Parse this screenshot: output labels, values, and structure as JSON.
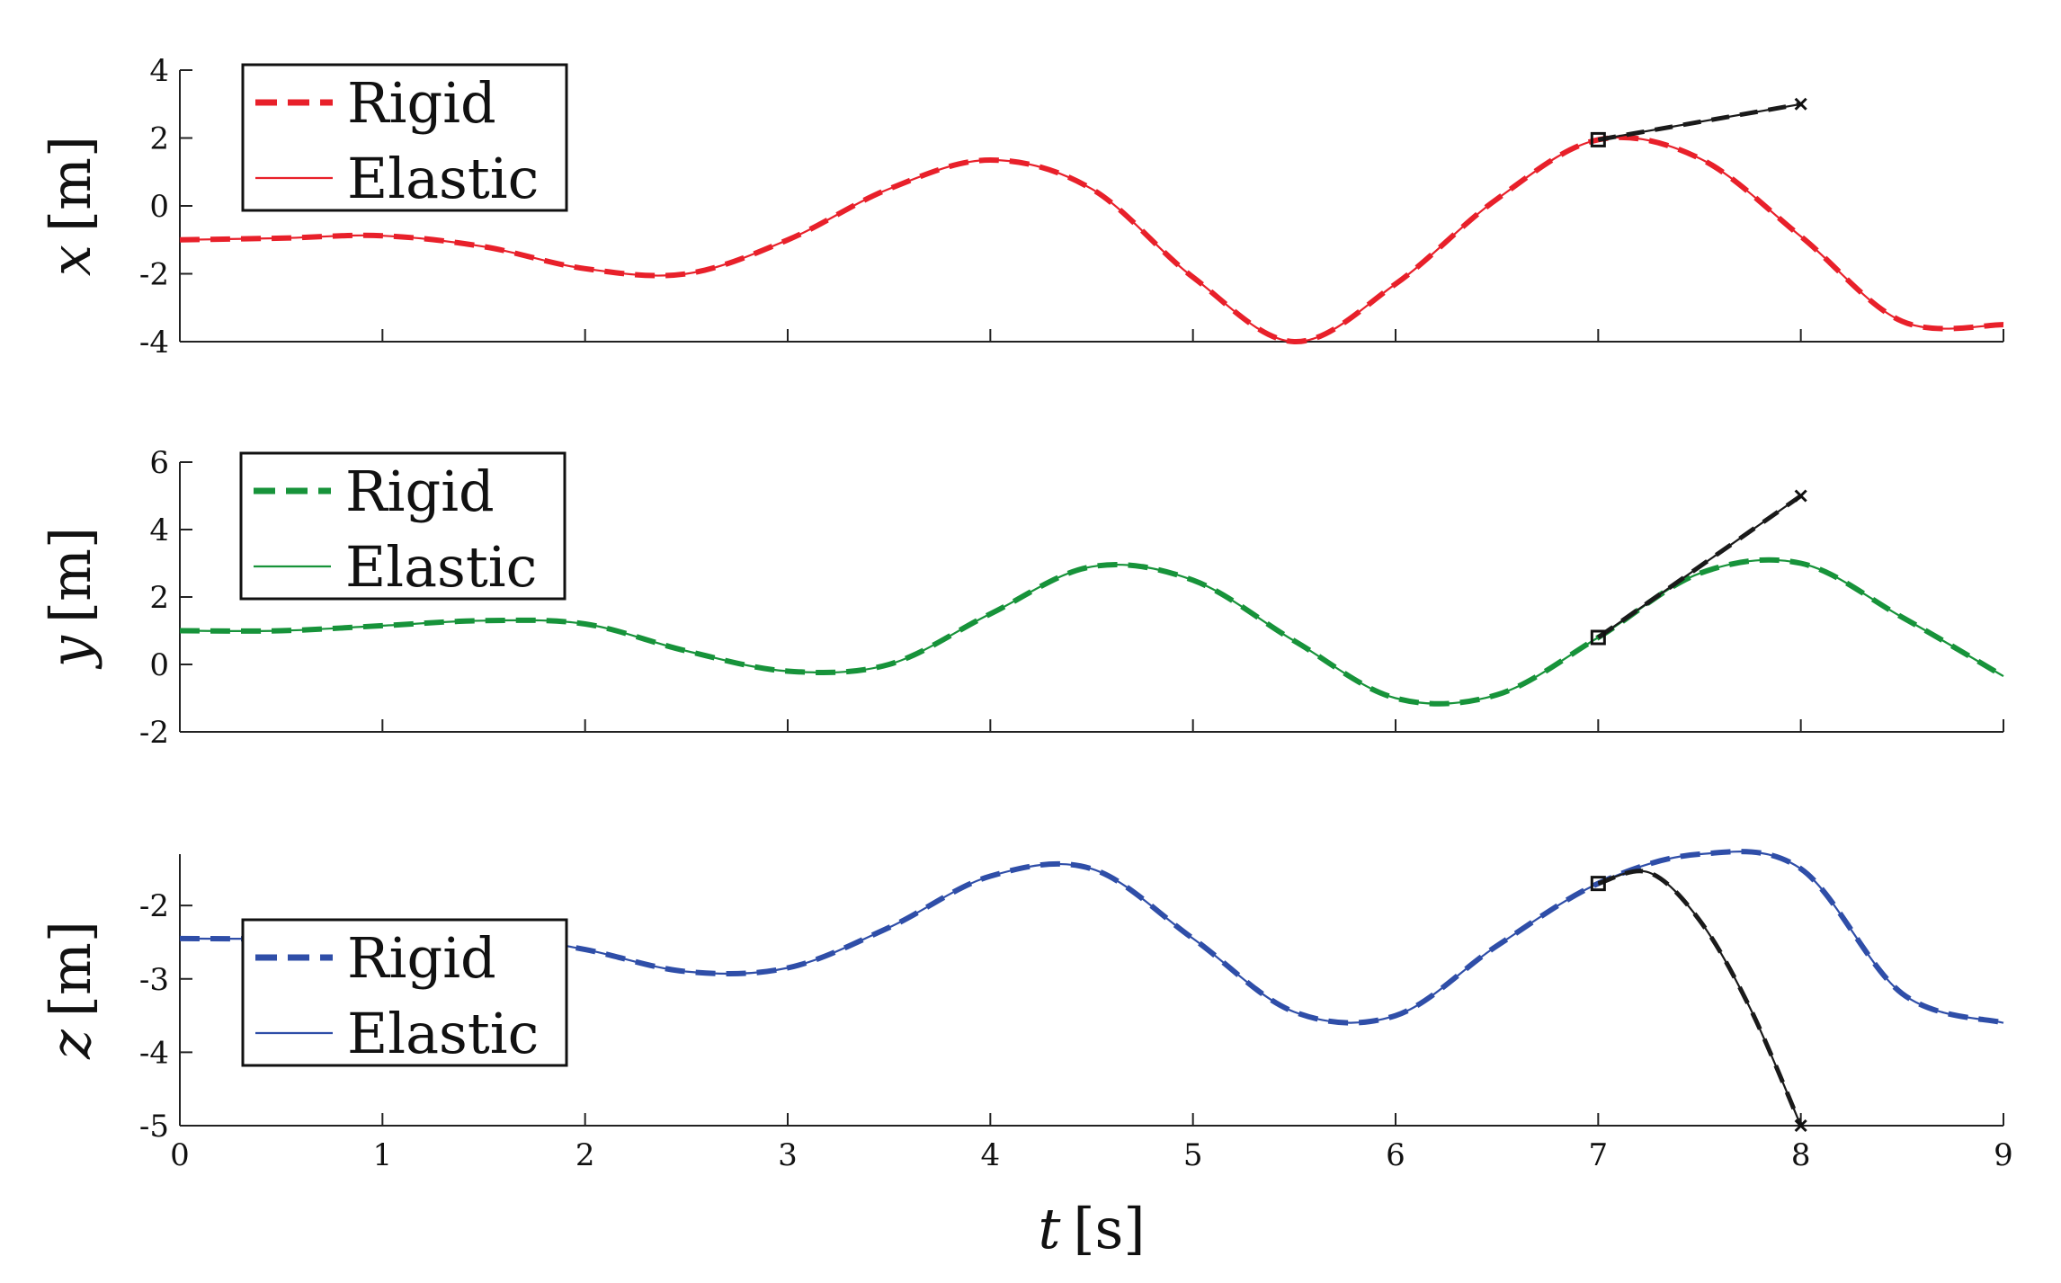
{
  "colors": {
    "x": "#e8202a",
    "y": "#17933a",
    "z": "#2f4ea8",
    "prediction": "#1a1a1a"
  },
  "chart_data": [
    {
      "type": "line",
      "ylabel_var": "x",
      "ylabel_unit": "[m]",
      "xlim": [
        0,
        9
      ],
      "ylim": [
        -4,
        4
      ],
      "yticks": [
        -4,
        -2,
        0,
        2,
        4
      ],
      "legend_position": "top-left",
      "series": [
        {
          "name": "Rigid",
          "style": "dashed",
          "color": "#e8202a",
          "x": [
            0,
            0.5,
            1,
            1.5,
            2,
            2.5,
            3,
            3.5,
            4,
            4.5,
            5,
            5.5,
            6,
            6.5,
            7,
            7.5,
            8,
            8.5,
            9
          ],
          "y": [
            -1.0,
            -0.95,
            -0.88,
            -1.2,
            -1.85,
            -2.0,
            -1.0,
            0.5,
            1.35,
            0.5,
            -2.1,
            -4.0,
            -2.3,
            0.2,
            1.95,
            1.4,
            -0.9,
            -3.4,
            -3.5
          ]
        },
        {
          "name": "Elastic",
          "style": "solid",
          "color": "#e8202a",
          "x": [
            0,
            0.5,
            1,
            1.5,
            2,
            2.5,
            3,
            3.5,
            4,
            4.5,
            5,
            5.5,
            6,
            6.5,
            7,
            7.5,
            8,
            8.5,
            9
          ],
          "y": [
            -1.0,
            -0.95,
            -0.88,
            -1.2,
            -1.85,
            -2.0,
            -1.0,
            0.5,
            1.35,
            0.5,
            -2.1,
            -4.0,
            -2.3,
            0.2,
            1.95,
            1.4,
            -0.9,
            -3.4,
            -3.5
          ]
        }
      ],
      "prediction": {
        "x": [
          7,
          8
        ],
        "y": [
          1.95,
          3.0
        ]
      }
    },
    {
      "type": "line",
      "ylabel_var": "y",
      "ylabel_unit": "[m]",
      "xlim": [
        0,
        9
      ],
      "ylim": [
        -2,
        6
      ],
      "yticks": [
        -2,
        0,
        2,
        4,
        6
      ],
      "legend_position": "top-left",
      "series": [
        {
          "name": "Rigid",
          "style": "dashed",
          "color": "#17933a",
          "x": [
            0,
            0.5,
            1,
            1.5,
            2,
            2.5,
            3,
            3.5,
            4,
            4.5,
            5,
            5.5,
            6,
            6.5,
            7,
            7.5,
            8,
            8.5,
            9
          ],
          "y": [
            1.0,
            1.0,
            1.15,
            1.3,
            1.2,
            0.4,
            -0.2,
            0.0,
            1.5,
            2.9,
            2.5,
            0.7,
            -1.0,
            -0.9,
            0.8,
            2.7,
            3.0,
            1.4,
            -0.35
          ]
        },
        {
          "name": "Elastic",
          "style": "solid",
          "color": "#17933a",
          "x": [
            0,
            0.5,
            1,
            1.5,
            2,
            2.5,
            3,
            3.5,
            4,
            4.5,
            5,
            5.5,
            6,
            6.5,
            7,
            7.5,
            8,
            8.5,
            9
          ],
          "y": [
            1.0,
            1.0,
            1.15,
            1.3,
            1.2,
            0.4,
            -0.2,
            0.0,
            1.5,
            2.9,
            2.5,
            0.7,
            -1.0,
            -0.9,
            0.8,
            2.7,
            3.0,
            1.4,
            -0.35
          ]
        }
      ],
      "prediction": {
        "x": [
          7,
          8
        ],
        "y": [
          0.8,
          5.0
        ]
      }
    },
    {
      "type": "line",
      "ylabel_var": "z",
      "ylabel_unit": "[m]",
      "xlabel_var": "t",
      "xlabel_unit": "[s]",
      "xlim": [
        0,
        9
      ],
      "ylim": [
        -5,
        -1.3
      ],
      "yticks": [
        -5,
        -4,
        -3,
        -2
      ],
      "xticks": [
        0,
        1,
        2,
        3,
        4,
        5,
        6,
        7,
        8,
        9
      ],
      "legend_position": "bottom-left",
      "series": [
        {
          "name": "Rigid",
          "style": "dashed",
          "color": "#2f4ea8",
          "x": [
            0,
            0.5,
            1,
            1.5,
            2,
            2.5,
            3,
            3.5,
            4,
            4.5,
            5,
            5.5,
            6,
            6.5,
            7,
            7.5,
            8,
            8.5,
            9
          ],
          "y": [
            -2.45,
            -2.45,
            -2.4,
            -2.38,
            -2.6,
            -2.9,
            -2.85,
            -2.3,
            -1.6,
            -1.5,
            -2.45,
            -3.45,
            -3.5,
            -2.55,
            -1.7,
            -1.3,
            -1.5,
            -3.2,
            -3.6
          ]
        },
        {
          "name": "Elastic",
          "style": "solid",
          "color": "#2f4ea8",
          "x": [
            0,
            0.5,
            1,
            1.5,
            2,
            2.5,
            3,
            3.5,
            4,
            4.5,
            5,
            5.5,
            6,
            6.5,
            7,
            7.5,
            8,
            8.5,
            9
          ],
          "y": [
            -2.45,
            -2.45,
            -2.4,
            -2.38,
            -2.6,
            -2.9,
            -2.85,
            -2.3,
            -1.6,
            -1.5,
            -2.45,
            -3.45,
            -3.5,
            -2.55,
            -1.7,
            -1.3,
            -1.5,
            -3.2,
            -3.6
          ]
        }
      ],
      "prediction": {
        "x": [
          7,
          7.25,
          7.5,
          7.75,
          8
        ],
        "y": [
          -1.7,
          -1.55,
          -2.2,
          -3.4,
          -5.0
        ]
      }
    }
  ]
}
